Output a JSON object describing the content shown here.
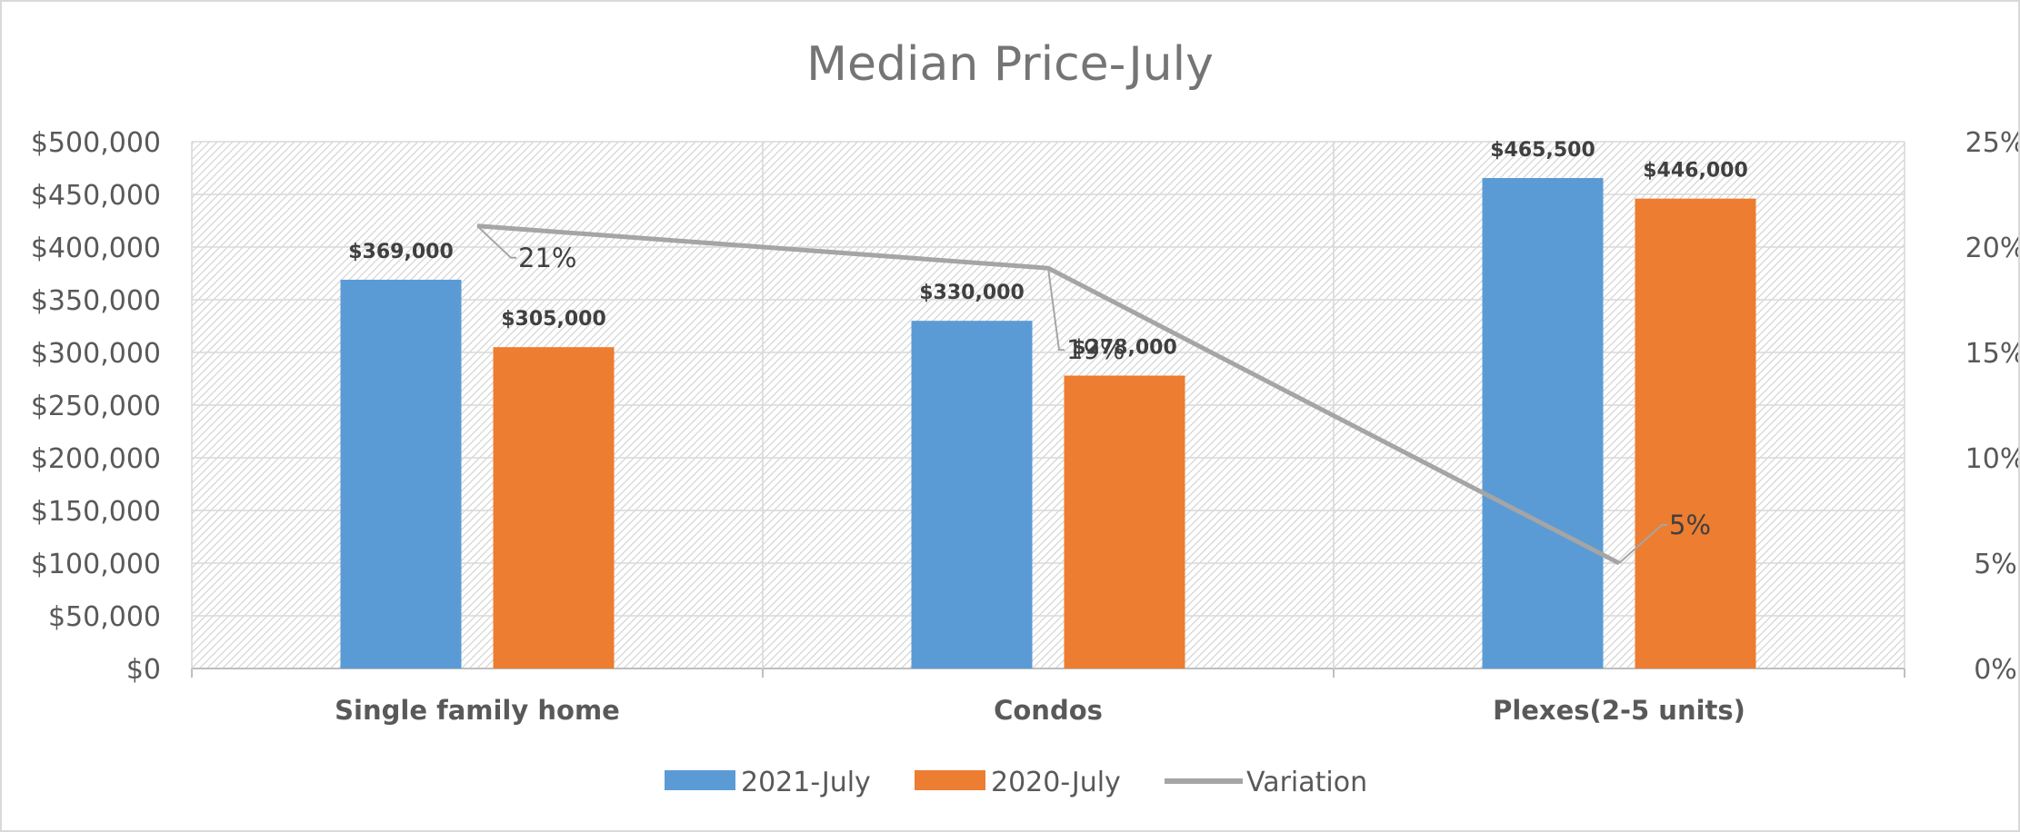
{
  "chart_data": {
    "type": "bar",
    "title": "Median Price-July",
    "categories": [
      "Single family home",
      "Condos",
      "Plexes(2-5 units)"
    ],
    "series": [
      {
        "name": "2021-July",
        "values": [
          369000,
          330000,
          465500
        ],
        "labels": [
          "$369,000",
          "$330,000",
          "$465,500"
        ],
        "color": "#5b9bd5"
      },
      {
        "name": "2020-July",
        "values": [
          305000,
          278000,
          446000
        ],
        "labels": [
          "$305,000",
          "$278,000",
          "$446,000"
        ],
        "color": "#ed7d31"
      }
    ],
    "line_series": {
      "name": "Variation",
      "values": [
        21,
        19,
        5
      ],
      "labels": [
        "21%",
        "19%",
        "5%"
      ],
      "color": "#a5a5a5",
      "axis": "secondary"
    },
    "y_axis": {
      "ylim": [
        0,
        500000
      ],
      "ticks": [
        "$0",
        "$50,000",
        "$100,000",
        "$150,000",
        "$200,000",
        "$250,000",
        "$300,000",
        "$350,000",
        "$400,000",
        "$450,000",
        "$500,000"
      ]
    },
    "y2_axis": {
      "ylim": [
        0,
        25
      ],
      "ticks": [
        "0%",
        "5%",
        "10%",
        "15%",
        "20%",
        "25%"
      ]
    },
    "grid": true,
    "legend_position": "bottom"
  },
  "colors": {
    "bar_2021": "#5b9bd5",
    "bar_2020": "#ed7d31",
    "line": "#a5a5a5",
    "grid": "#d9d9d9"
  }
}
